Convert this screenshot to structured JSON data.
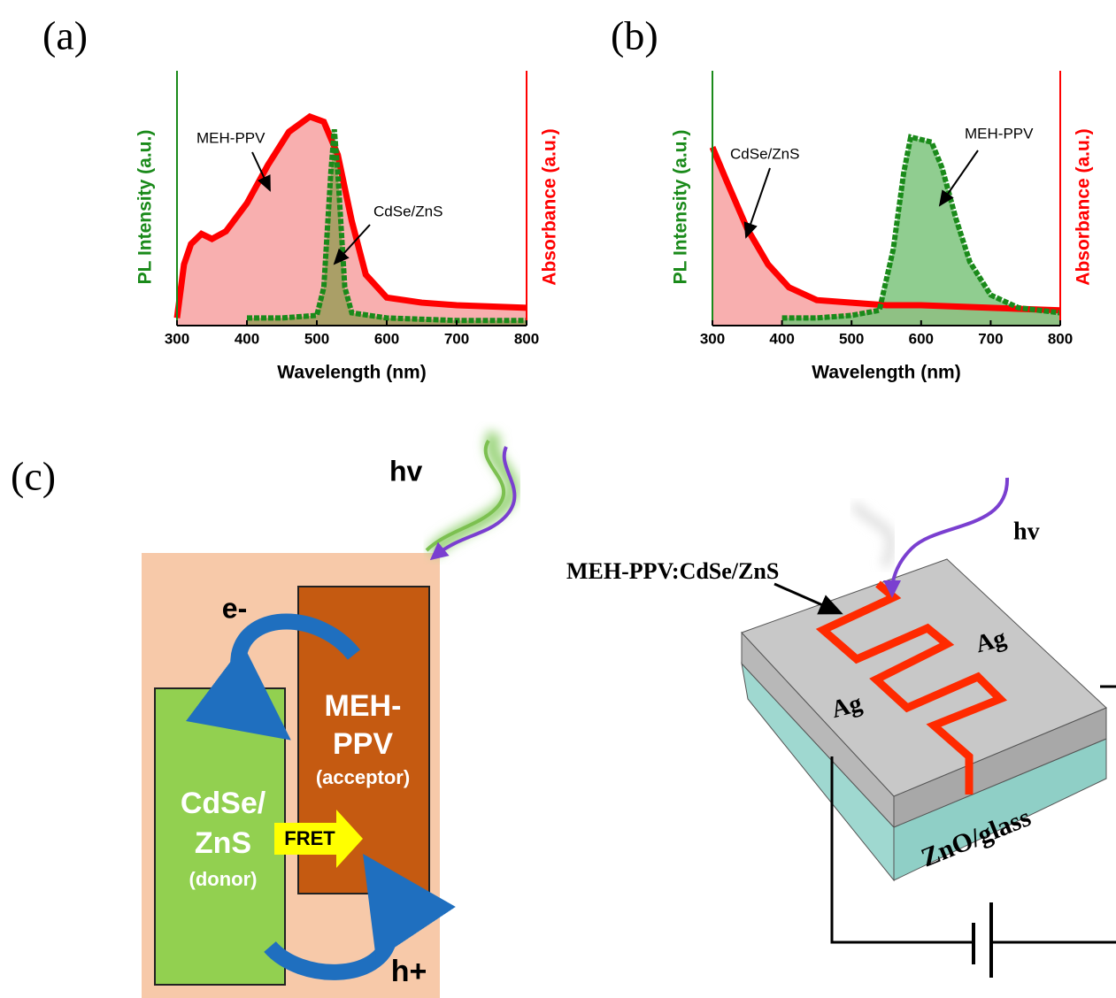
{
  "chart_data": [
    {
      "type": "line",
      "label": "(a)",
      "x_label": "Wavelength (nm)",
      "y_label": "PL Intensity (a.u.)",
      "y2_label": "Absorbance (a.u.)",
      "xlim": [
        300,
        800
      ],
      "xticks": [
        300,
        400,
        500,
        600,
        700,
        800
      ],
      "ylim": [
        0,
        1
      ],
      "y2lim": [
        0,
        1
      ],
      "series": [
        {
          "name": "MEH-PPV",
          "axis": "y2",
          "color": "#ff0000",
          "fill": "#f7a1a1",
          "x": [
            300,
            310,
            320,
            335,
            350,
            370,
            400,
            430,
            460,
            490,
            510,
            530,
            550,
            570,
            600,
            650,
            700,
            800
          ],
          "values": [
            0.03,
            0.24,
            0.32,
            0.36,
            0.34,
            0.37,
            0.48,
            0.63,
            0.76,
            0.82,
            0.8,
            0.67,
            0.41,
            0.2,
            0.11,
            0.09,
            0.08,
            0.07
          ]
        },
        {
          "name": "CdSe/ZnS",
          "color": "#1a8a1a",
          "fill": "#9c9c5a",
          "x": [
            400,
            450,
            500,
            510,
            520,
            525,
            530,
            540,
            550,
            600,
            700,
            800
          ],
          "values": [
            0.03,
            0.03,
            0.04,
            0.15,
            0.6,
            0.77,
            0.6,
            0.15,
            0.05,
            0.03,
            0.02,
            0.02
          ]
        }
      ]
    },
    {
      "type": "line",
      "label": "(b)",
      "x_label": "Wavelength (nm)",
      "y_label": "PL Intensity (a.u.)",
      "y2_label": "Absorbance (a.u.)",
      "xlim": [
        300,
        800
      ],
      "xticks": [
        300,
        400,
        500,
        600,
        700,
        800
      ],
      "ylim": [
        0,
        1
      ],
      "y2lim": [
        0,
        1
      ],
      "series": [
        {
          "name": "CdSe/ZnS",
          "axis": "y2",
          "color": "#ff0000",
          "fill": "#f7a1a1",
          "x": [
            300,
            320,
            350,
            380,
            410,
            450,
            500,
            550,
            600,
            700,
            800
          ],
          "values": [
            0.7,
            0.57,
            0.38,
            0.24,
            0.15,
            0.1,
            0.09,
            0.08,
            0.08,
            0.07,
            0.06
          ]
        },
        {
          "name": "MEH-PPV",
          "color": "#1a8a1a",
          "fill": "#7cc47c",
          "x": [
            400,
            450,
            500,
            540,
            560,
            575,
            585,
            600,
            615,
            630,
            650,
            670,
            700,
            740,
            800
          ],
          "values": [
            0.03,
            0.03,
            0.04,
            0.06,
            0.3,
            0.6,
            0.74,
            0.73,
            0.72,
            0.62,
            0.42,
            0.25,
            0.12,
            0.07,
            0.05
          ]
        }
      ]
    }
  ],
  "diagram": {
    "label": "(c)",
    "light": "hv",
    "electron": "e-",
    "hole": "h+",
    "acceptor": {
      "lines": [
        "MEH-",
        "PPV"
      ],
      "role": "(acceptor)"
    },
    "donor": {
      "lines": [
        "CdSe/",
        "ZnS"
      ],
      "role": "(donor)"
    },
    "transfer": "FRET",
    "device": {
      "light": "hv",
      "channel": "MEH-PPV:CdSe/ZnS",
      "electrodes": [
        "Ag",
        "Ag"
      ],
      "substrate": "ZnO/glass"
    }
  }
}
